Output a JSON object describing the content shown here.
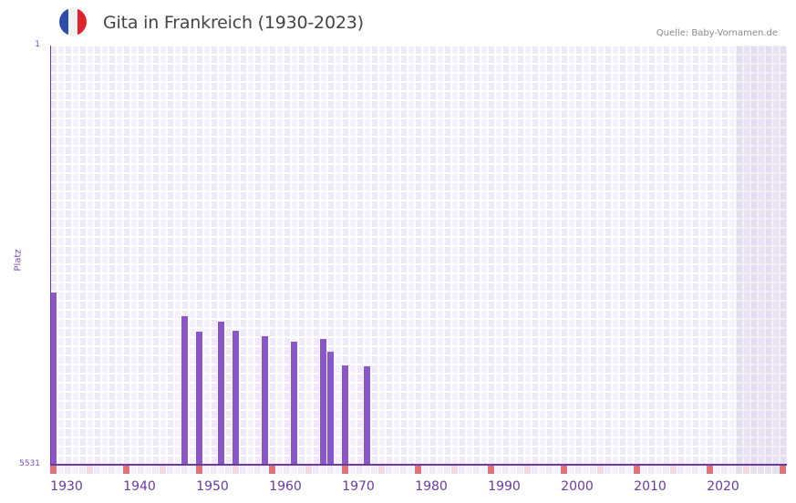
{
  "header": {
    "title": "Gita in Frankreich (1930-2023)",
    "source": "Quelle: Baby-Vornamen.de",
    "flag": {
      "icon": "france-flag-icon",
      "colors": [
        "#2b4fa8",
        "#f2f2f2",
        "#e3232c"
      ]
    }
  },
  "colors": {
    "bar": "#8b56c8",
    "axis": "#6a3aa0",
    "grid_a": "#efeafa",
    "grid_b": "#f4f1fc",
    "decade_marker": "#e2727a",
    "half_decade_marker": "#f3d8e0",
    "future_shade": "#e4e0ee"
  },
  "chart_data": {
    "type": "bar",
    "title": "Gita in Frankreich (1930-2023)",
    "xlabel": "",
    "ylabel": "Platz",
    "y_inverted": true,
    "ylim": [
      1,
      5531
    ],
    "xlim": [
      1930,
      2030
    ],
    "x_ticks": [
      1930,
      1940,
      1950,
      1960,
      1970,
      1980,
      1990,
      2000,
      2010,
      2020
    ],
    "y_ticks": [
      1,
      5531
    ],
    "grid": true,
    "shaded_from_year": 2024,
    "series": [
      {
        "name": "Platz",
        "x": [
          1930,
          1948,
          1950,
          1953,
          1955,
          1959,
          1963,
          1967,
          1968,
          1970,
          1973
        ],
        "values": [
          3255,
          3572,
          3776,
          3643,
          3764,
          3836,
          3908,
          3872,
          4040,
          4221,
          4233
        ]
      }
    ]
  },
  "axis": {
    "y_label": "Platz",
    "y_top": "1",
    "y_bottom": "5531",
    "x_labels": [
      "1930",
      "1940",
      "1950",
      "1960",
      "1970",
      "1980",
      "1990",
      "2000",
      "2010",
      "2020"
    ]
  }
}
